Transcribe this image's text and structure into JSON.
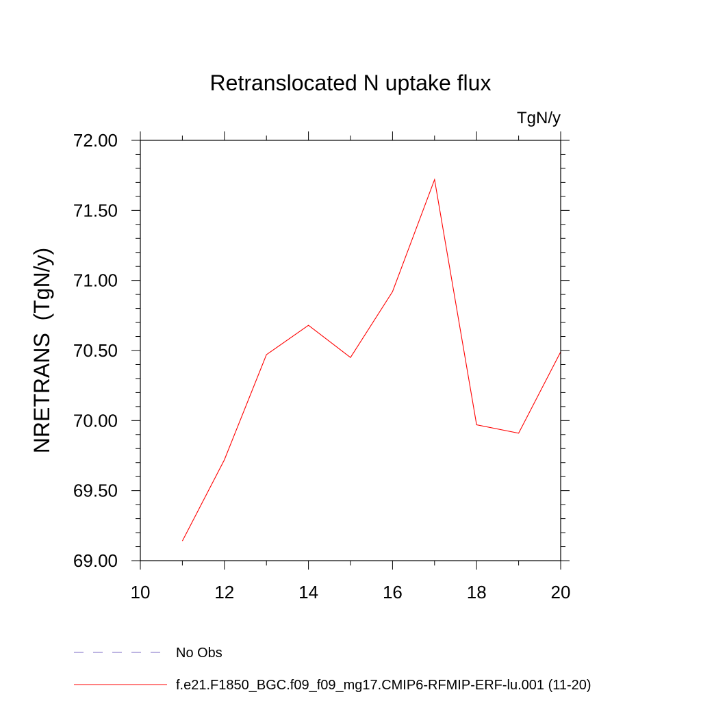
{
  "chart_data": {
    "type": "line",
    "title": "Retranslocated N uptake flux",
    "units": "TgN/y",
    "ylabel": "NRETRANS  (TgN/y)",
    "xlabel": "",
    "xlim": [
      10,
      20
    ],
    "ylim": [
      69.0,
      72.0
    ],
    "x_ticks": [
      10,
      12,
      14,
      16,
      18,
      20
    ],
    "y_ticks": [
      "69.00",
      "69.50",
      "70.00",
      "70.50",
      "71.00",
      "71.50",
      "72.00"
    ],
    "grid": false,
    "legend_position": "bottom-left",
    "series": [
      {
        "name": "f.e21.F1850_BGC.f09_f09_mg17.CMIP6-RFMIP-ERF-lu.001 (11-20)",
        "color": "#ff0000",
        "style": "solid",
        "x": [
          11,
          12,
          13,
          14,
          15,
          16,
          17,
          18,
          19,
          20
        ],
        "y": [
          69.14,
          69.72,
          70.47,
          70.68,
          70.45,
          70.92,
          71.72,
          69.97,
          69.91,
          70.49
        ]
      }
    ],
    "legend": [
      {
        "label": "No Obs",
        "color": "#7b68c4",
        "style": "dashed"
      },
      {
        "label": "f.e21.F1850_BGC.f09_f09_mg17.CMIP6-RFMIP-ERF-lu.001 (11-20)",
        "color": "#ff0000",
        "style": "solid"
      }
    ]
  }
}
